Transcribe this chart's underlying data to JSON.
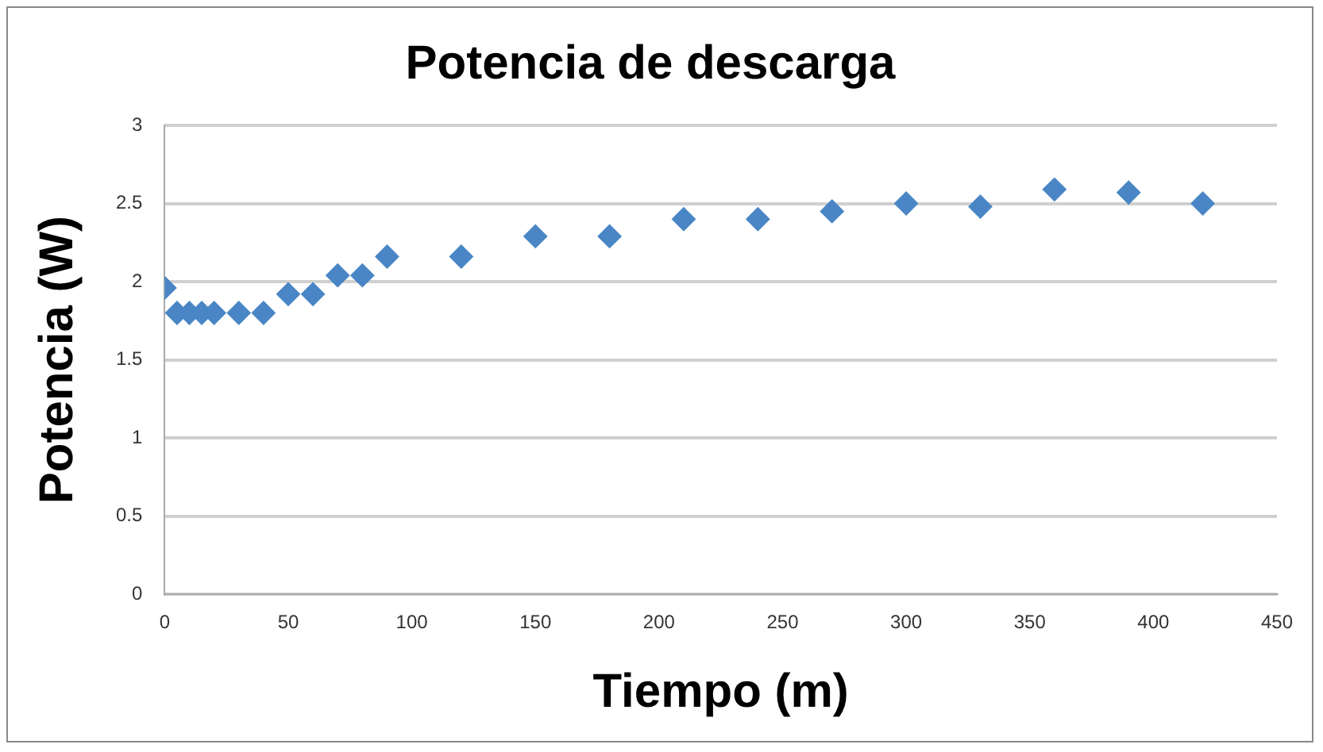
{
  "chart_data": {
    "type": "scatter",
    "title": "Potencia de descarga",
    "xlabel": "Tiempo (m)",
    "ylabel": "Potencia (W)",
    "x": [
      0,
      5,
      10,
      15,
      20,
      30,
      40,
      50,
      60,
      70,
      80,
      90,
      120,
      150,
      180,
      210,
      240,
      270,
      300,
      330,
      360,
      390,
      420
    ],
    "series": [
      {
        "color": "#4a86c5",
        "values": [
          1.96,
          1.8,
          1.8,
          1.8,
          1.8,
          1.8,
          1.8,
          1.92,
          1.92,
          2.04,
          2.04,
          2.16,
          2.16,
          2.29,
          2.29,
          2.4,
          2.4,
          2.45,
          2.5,
          2.48,
          2.59,
          2.57,
          2.5
        ]
      }
    ],
    "xlim": [
      0,
      450
    ],
    "xticks": [
      0,
      50,
      100,
      150,
      200,
      250,
      300,
      350,
      400,
      450
    ],
    "ylim": [
      0,
      3
    ],
    "yticks": [
      0,
      0.5,
      1,
      1.5,
      2,
      2.5,
      3
    ],
    "grid": "y",
    "legend": false,
    "marker": "diamond"
  }
}
